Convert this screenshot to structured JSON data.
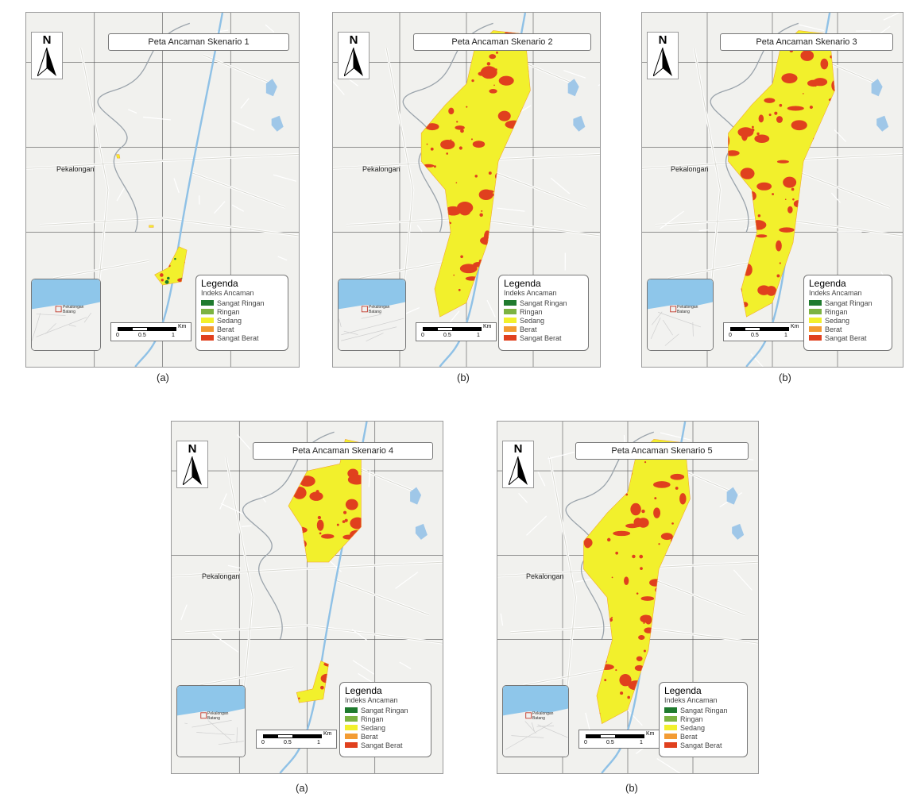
{
  "panels": [
    {
      "title": "Peta Ancaman Skenario 1",
      "caption": "(a)"
    },
    {
      "title": "Peta Ancaman Skenario 2",
      "caption": "(b)"
    },
    {
      "title": "Peta Ancaman Skenario 3",
      "caption": "(b)"
    },
    {
      "title": "Peta Ancaman Skenario 4",
      "caption": "(a)"
    },
    {
      "title": "Peta Ancaman Skenario 5",
      "caption": "(b)"
    }
  ],
  "north_label": "N",
  "place_label": "Pekalongan",
  "inset_label": "Pekalongan Batang",
  "legend": {
    "title": "Legenda",
    "subtitle": "Indeks Ancaman",
    "classes": [
      {
        "label": "Sangat Ringan",
        "color": "#1f7a2e"
      },
      {
        "label": "Ringan",
        "color": "#7cb342"
      },
      {
        "label": "Sedang",
        "color": "#f2f02c"
      },
      {
        "label": "Berat",
        "color": "#f39c33"
      },
      {
        "label": "Sangat Berat",
        "color": "#e0401e"
      }
    ]
  },
  "scale": {
    "unit": "Km",
    "ticks": [
      "0",
      "0.5",
      "1"
    ]
  }
}
